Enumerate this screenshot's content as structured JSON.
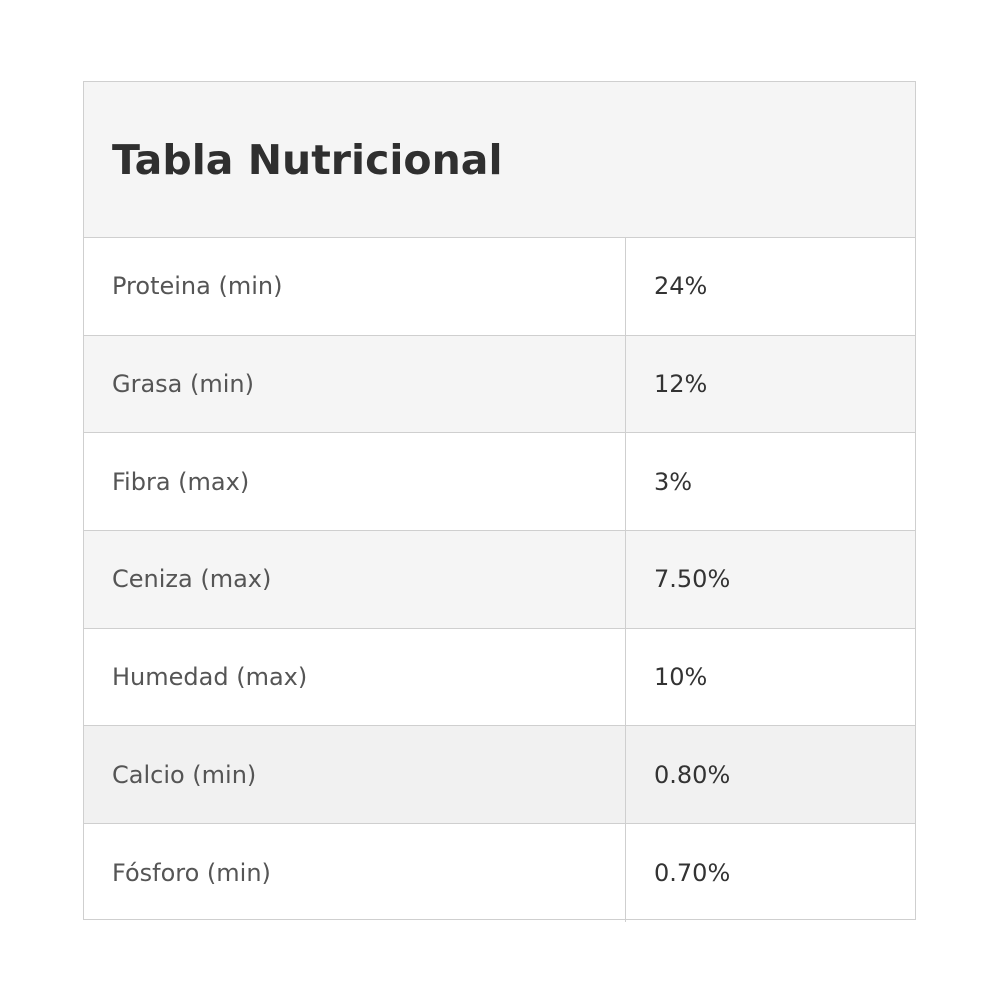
{
  "table": {
    "title": "Tabla Nutricional",
    "rows": [
      {
        "label": "Proteina (min)",
        "value": "24%"
      },
      {
        "label": "Grasa (min)",
        "value": "12%"
      },
      {
        "label": "Fibra (max)",
        "value": "3%"
      },
      {
        "label": "Ceniza (max)",
        "value": "7.50%"
      },
      {
        "label": "Humedad (max)",
        "value": "10%"
      },
      {
        "label": "Calcio (min)",
        "value": "0.80%"
      },
      {
        "label": "Fósforo (min)",
        "value": "0.70%"
      }
    ]
  },
  "colors": {
    "header_bg": "#f5f5f5",
    "row_alt_bg": "#f5f5f5",
    "border": "#cfcfcf",
    "text": "#333333"
  }
}
